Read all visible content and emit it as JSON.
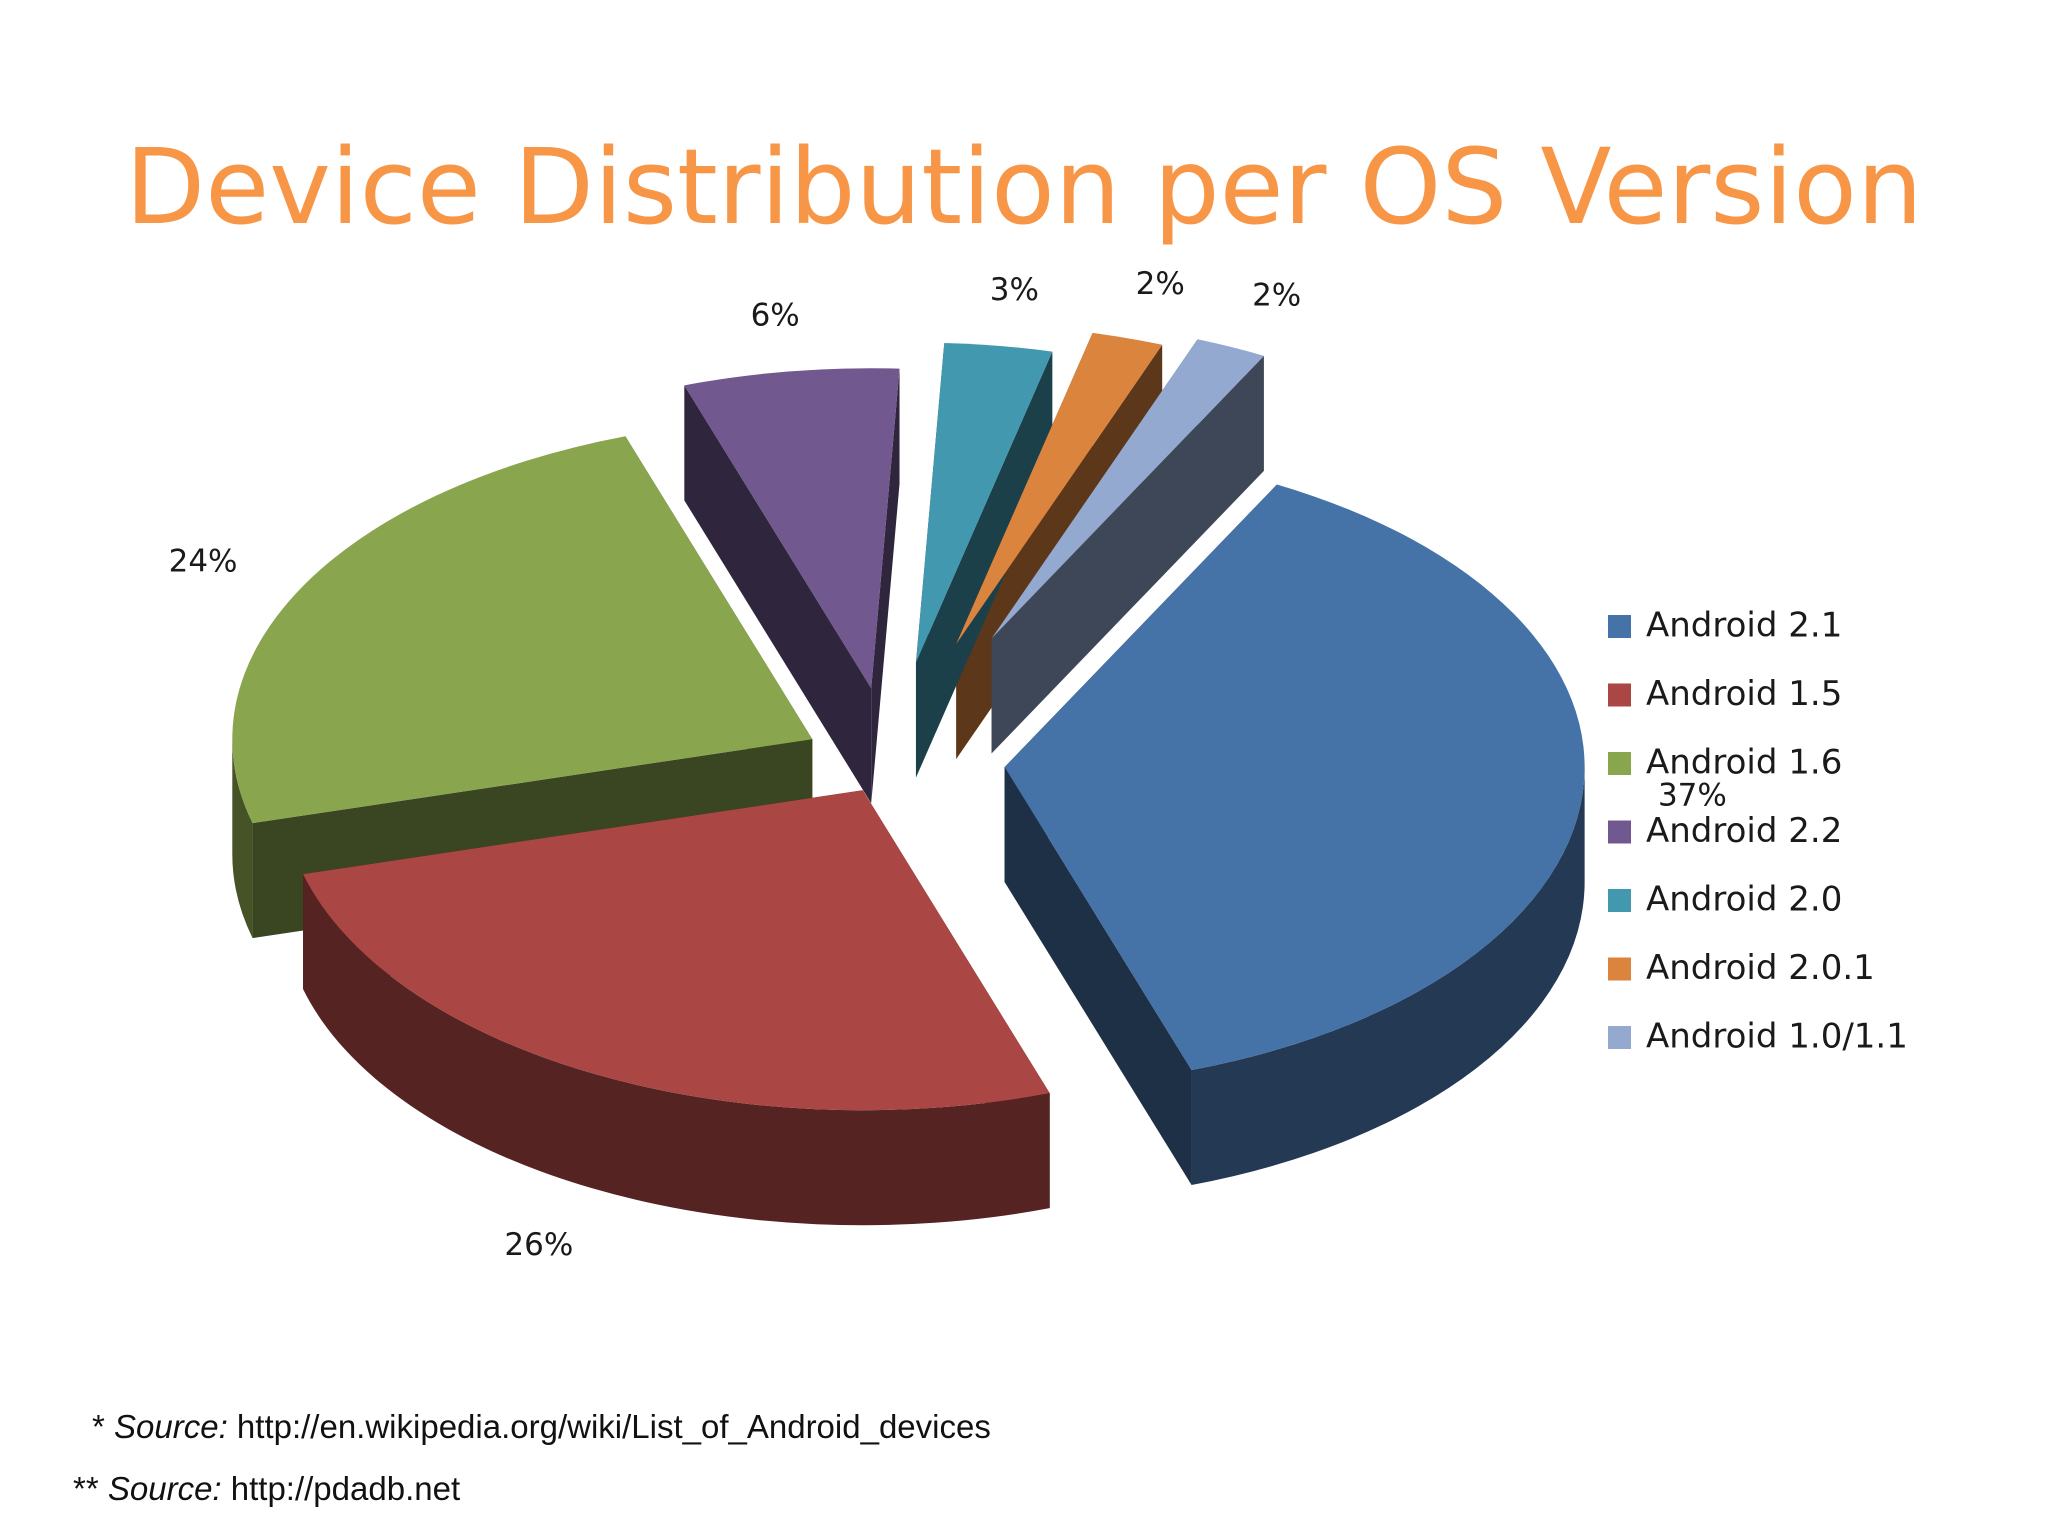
{
  "chart_data": {
    "type": "pie",
    "title": "Device Distribution per OS Version",
    "slices": [
      {
        "label": "Android 2.1",
        "value": 37,
        "display": "37%",
        "color": "#4572A7"
      },
      {
        "label": "Android 1.5",
        "value": 26,
        "display": "26%",
        "color": "#AA4643"
      },
      {
        "label": "Android 1.6",
        "value": 24,
        "display": "24%",
        "color": "#89A54E"
      },
      {
        "label": "Android 2.2",
        "value": 6,
        "display": "6%",
        "color": "#71588F"
      },
      {
        "label": "Android 2.0",
        "value": 3,
        "display": "3%",
        "color": "#4198AF"
      },
      {
        "label": "Android 2.0.1",
        "value": 2,
        "display": "2%",
        "color": "#DB843D"
      },
      {
        "label": "Android 1.0/1.1",
        "value": 2,
        "display": "2%",
        "color": "#93A9CF"
      }
    ],
    "legend_position": "right",
    "style": "3d-exploded"
  },
  "footnotes": [
    {
      "prefix": "* ",
      "label": "Source:",
      "text": " http://en.wikipedia.org/wiki/List_of_Android_devices"
    },
    {
      "prefix": "** ",
      "label": "Source:",
      "text": " http://pdadb.net"
    }
  ]
}
